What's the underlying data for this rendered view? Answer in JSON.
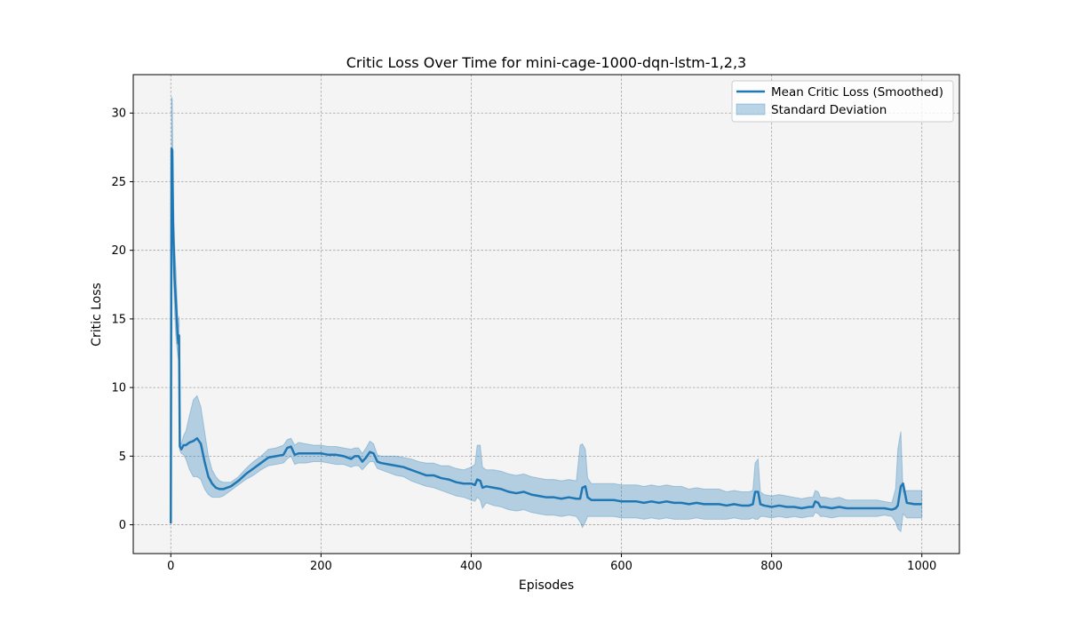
{
  "chart_data": {
    "type": "line",
    "title": "Critic Loss Over Time for mini-cage-1000-dqn-lstm-1,2,3",
    "xlabel": "Episodes",
    "ylabel": "Critic Loss",
    "xlim": [
      -50,
      1050
    ],
    "ylim": [
      -2.1,
      32.8
    ],
    "xticks": [
      0,
      200,
      400,
      600,
      800,
      1000
    ],
    "yticks": [
      0,
      5,
      10,
      15,
      20,
      25,
      30
    ],
    "grid": true,
    "legend_position": "upper right",
    "colors": {
      "line": "#1f77b4",
      "band": "#1f77b4",
      "background": "#f4f4f4",
      "grid": "#a0a0a0"
    },
    "series": [
      {
        "name": "Mean Critic Loss (Smoothed)",
        "kind": "line",
        "x": [
          0,
          1,
          2,
          3,
          5,
          7,
          9,
          10,
          11,
          12,
          14,
          17,
          20,
          25,
          30,
          35,
          40,
          45,
          50,
          55,
          60,
          65,
          70,
          80,
          90,
          100,
          110,
          120,
          130,
          140,
          150,
          155,
          160,
          165,
          170,
          180,
          190,
          200,
          210,
          220,
          230,
          240,
          245,
          250,
          255,
          260,
          265,
          270,
          275,
          280,
          290,
          300,
          310,
          320,
          330,
          340,
          350,
          360,
          370,
          380,
          390,
          400,
          405,
          408,
          412,
          415,
          420,
          430,
          440,
          450,
          460,
          470,
          480,
          490,
          500,
          510,
          520,
          530,
          540,
          545,
          548,
          552,
          555,
          560,
          570,
          580,
          590,
          600,
          610,
          620,
          630,
          640,
          650,
          660,
          670,
          680,
          690,
          700,
          710,
          720,
          730,
          740,
          750,
          760,
          770,
          775,
          778,
          782,
          785,
          790,
          800,
          810,
          820,
          830,
          840,
          850,
          855,
          858,
          862,
          865,
          870,
          880,
          890,
          900,
          910,
          920,
          930,
          940,
          950,
          960,
          965,
          968,
          972,
          975,
          980,
          990,
          1000
        ],
        "y": [
          0.1,
          27.4,
          27.3,
          22.0,
          18.0,
          16.0,
          13.9,
          13.2,
          13.8,
          5.7,
          5.5,
          5.8,
          5.8,
          6.0,
          6.1,
          6.3,
          5.9,
          4.6,
          3.5,
          3.0,
          2.7,
          2.6,
          2.6,
          2.8,
          3.2,
          3.7,
          4.1,
          4.5,
          4.9,
          5.0,
          5.1,
          5.6,
          5.7,
          5.1,
          5.2,
          5.2,
          5.2,
          5.2,
          5.1,
          5.1,
          5.0,
          4.8,
          5.0,
          5.0,
          4.6,
          4.9,
          5.3,
          5.2,
          4.6,
          4.5,
          4.4,
          4.3,
          4.2,
          4.0,
          3.8,
          3.6,
          3.6,
          3.4,
          3.3,
          3.1,
          3.0,
          3.0,
          2.9,
          3.3,
          3.2,
          2.7,
          2.8,
          2.7,
          2.6,
          2.4,
          2.3,
          2.4,
          2.2,
          2.1,
          2.0,
          2.0,
          1.9,
          2.0,
          1.9,
          1.9,
          2.7,
          2.8,
          2.0,
          1.8,
          1.8,
          1.8,
          1.8,
          1.7,
          1.7,
          1.7,
          1.6,
          1.7,
          1.6,
          1.7,
          1.6,
          1.6,
          1.5,
          1.6,
          1.5,
          1.5,
          1.5,
          1.4,
          1.5,
          1.4,
          1.4,
          1.5,
          2.4,
          2.4,
          1.5,
          1.4,
          1.3,
          1.4,
          1.3,
          1.3,
          1.2,
          1.3,
          1.3,
          1.7,
          1.6,
          1.3,
          1.3,
          1.2,
          1.3,
          1.2,
          1.2,
          1.2,
          1.2,
          1.2,
          1.2,
          1.1,
          1.2,
          1.4,
          2.8,
          3.0,
          1.6,
          1.5,
          1.5
        ]
      },
      {
        "name": "Standard Deviation",
        "kind": "band",
        "x": [
          0,
          1,
          2,
          3,
          5,
          7,
          9,
          10,
          11,
          12,
          14,
          17,
          20,
          25,
          30,
          35,
          40,
          45,
          50,
          55,
          60,
          65,
          70,
          80,
          90,
          100,
          110,
          120,
          130,
          140,
          150,
          155,
          160,
          165,
          170,
          180,
          190,
          200,
          210,
          220,
          230,
          240,
          245,
          250,
          255,
          260,
          265,
          270,
          275,
          280,
          290,
          300,
          310,
          320,
          330,
          340,
          350,
          360,
          370,
          380,
          390,
          400,
          405,
          408,
          412,
          415,
          420,
          430,
          440,
          450,
          460,
          470,
          480,
          490,
          500,
          510,
          520,
          530,
          540,
          545,
          548,
          552,
          555,
          560,
          570,
          580,
          590,
          600,
          610,
          620,
          630,
          640,
          650,
          660,
          670,
          680,
          690,
          700,
          710,
          720,
          730,
          740,
          750,
          760,
          770,
          775,
          778,
          782,
          785,
          790,
          800,
          810,
          820,
          830,
          840,
          850,
          855,
          858,
          862,
          865,
          870,
          880,
          890,
          900,
          910,
          920,
          930,
          940,
          950,
          960,
          965,
          968,
          972,
          975,
          980,
          990,
          1000
        ],
        "lower": [
          0.1,
          23.5,
          23.7,
          19.0,
          15.5,
          13.5,
          12.5,
          12.0,
          12.5,
          5.4,
          5.2,
          5.1,
          4.8,
          4.0,
          3.5,
          3.5,
          3.3,
          2.6,
          2.2,
          2.0,
          2.0,
          2.0,
          2.1,
          2.5,
          2.9,
          3.3,
          3.6,
          4.0,
          4.3,
          4.4,
          4.5,
          4.8,
          5.0,
          4.4,
          4.5,
          4.5,
          4.6,
          4.6,
          4.5,
          4.4,
          4.4,
          4.2,
          4.3,
          4.3,
          4.0,
          4.3,
          4.6,
          4.6,
          4.1,
          4.0,
          3.8,
          3.6,
          3.5,
          3.2,
          3.0,
          2.8,
          2.7,
          2.5,
          2.3,
          2.1,
          2.0,
          1.8,
          1.7,
          2.0,
          1.8,
          1.2,
          1.6,
          1.4,
          1.3,
          1.1,
          1.0,
          1.1,
          0.9,
          0.8,
          0.7,
          0.7,
          0.6,
          0.7,
          0.6,
          0.2,
          -0.2,
          0.2,
          0.6,
          0.6,
          0.6,
          0.6,
          0.6,
          0.5,
          0.5,
          0.5,
          0.4,
          0.5,
          0.4,
          0.5,
          0.4,
          0.4,
          0.4,
          0.5,
          0.4,
          0.4,
          0.4,
          0.4,
          0.5,
          0.4,
          0.4,
          0.5,
          0.4,
          0.4,
          0.6,
          0.6,
          0.5,
          0.6,
          0.5,
          0.6,
          0.5,
          0.6,
          0.6,
          0.9,
          0.8,
          0.6,
          0.6,
          0.5,
          0.6,
          0.6,
          0.6,
          0.6,
          0.6,
          0.6,
          0.7,
          0.6,
          0.2,
          -0.3,
          -0.5,
          0.8,
          0.5,
          0.5,
          0.5
        ],
        "upper": [
          0.1,
          31.2,
          31.0,
          25.0,
          20.5,
          18.5,
          15.5,
          14.4,
          15.2,
          6.0,
          5.9,
          6.5,
          6.8,
          8.0,
          9.1,
          9.4,
          8.6,
          6.8,
          5.0,
          4.0,
          3.5,
          3.2,
          3.1,
          3.1,
          3.5,
          4.1,
          4.6,
          5.0,
          5.5,
          5.6,
          5.8,
          6.2,
          6.3,
          5.8,
          6.0,
          5.9,
          5.8,
          5.8,
          5.7,
          5.7,
          5.6,
          5.5,
          5.6,
          5.6,
          5.2,
          5.6,
          6.1,
          5.9,
          5.1,
          5.0,
          5.0,
          5.0,
          4.9,
          4.8,
          4.6,
          4.5,
          4.5,
          4.3,
          4.3,
          4.1,
          4.0,
          4.2,
          4.4,
          5.8,
          5.8,
          4.2,
          4.0,
          4.0,
          3.9,
          3.7,
          3.6,
          3.7,
          3.5,
          3.4,
          3.3,
          3.3,
          3.2,
          3.3,
          3.2,
          5.8,
          5.9,
          5.5,
          3.4,
          3.0,
          3.0,
          3.0,
          3.0,
          2.9,
          2.9,
          2.9,
          2.8,
          2.9,
          2.8,
          2.9,
          2.8,
          2.8,
          2.6,
          2.7,
          2.6,
          2.6,
          2.6,
          2.4,
          2.5,
          2.4,
          2.4,
          2.5,
          4.5,
          4.8,
          2.4,
          2.2,
          2.1,
          2.2,
          2.1,
          2.0,
          1.9,
          2.0,
          2.0,
          2.5,
          2.4,
          2.0,
          2.0,
          1.9,
          2.0,
          1.8,
          1.8,
          1.8,
          1.8,
          1.8,
          1.7,
          1.6,
          2.6,
          5.5,
          6.8,
          2.4,
          2.5,
          2.5,
          2.5
        ]
      }
    ]
  }
}
